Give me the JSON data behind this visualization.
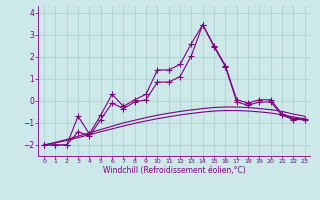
{
  "x_values": [
    0,
    1,
    2,
    3,
    4,
    5,
    6,
    7,
    8,
    9,
    10,
    11,
    12,
    13,
    14,
    15,
    16,
    17,
    18,
    19,
    20,
    21,
    22,
    23
  ],
  "line_jagged_y": [
    -2.0,
    -2.0,
    -2.0,
    -0.7,
    -1.5,
    -0.65,
    0.3,
    -0.25,
    0.05,
    0.3,
    1.4,
    1.4,
    1.65,
    2.6,
    3.45,
    2.5,
    1.6,
    0.05,
    -0.1,
    0.05,
    0.05,
    -0.6,
    -0.8,
    -0.8
  ],
  "line_jagged2_y": [
    -2.0,
    -2.0,
    -2.0,
    -1.4,
    -1.6,
    -0.85,
    -0.1,
    -0.35,
    -0.05,
    0.05,
    0.85,
    0.85,
    1.1,
    2.05,
    3.45,
    2.45,
    1.55,
    -0.05,
    -0.2,
    -0.05,
    -0.05,
    -0.65,
    -0.85,
    -0.85
  ],
  "smooth_y1": [
    -2.0,
    -1.88,
    -1.75,
    -1.6,
    -1.45,
    -1.3,
    -1.15,
    -1.0,
    -0.88,
    -0.76,
    -0.65,
    -0.56,
    -0.48,
    -0.41,
    -0.35,
    -0.3,
    -0.28,
    -0.28,
    -0.3,
    -0.35,
    -0.4,
    -0.48,
    -0.6,
    -0.7
  ],
  "smooth_y2": [
    -2.0,
    -1.9,
    -1.8,
    -1.67,
    -1.53,
    -1.4,
    -1.27,
    -1.14,
    -1.02,
    -0.91,
    -0.81,
    -0.72,
    -0.64,
    -0.57,
    -0.51,
    -0.46,
    -0.44,
    -0.44,
    -0.46,
    -0.5,
    -0.55,
    -0.63,
    -0.73,
    -0.82
  ],
  "ylim": [
    -2.5,
    4.3
  ],
  "xlim": [
    -0.5,
    23.5
  ],
  "yticks": [
    -2,
    -1,
    0,
    1,
    2,
    3,
    4
  ],
  "xticks": [
    0,
    1,
    2,
    3,
    4,
    5,
    6,
    7,
    8,
    9,
    10,
    11,
    12,
    13,
    14,
    15,
    16,
    17,
    18,
    19,
    20,
    21,
    22,
    23
  ],
  "line_color": "#800080",
  "bg_color": "#cce8e8",
  "grid_color": "#aacfcf",
  "xlabel": "Windchill (Refroidissement éolien,°C)",
  "xlabel_color": "#800080",
  "tick_color": "#800080",
  "marker": "+",
  "marker_size": 4,
  "linewidth": 0.8
}
